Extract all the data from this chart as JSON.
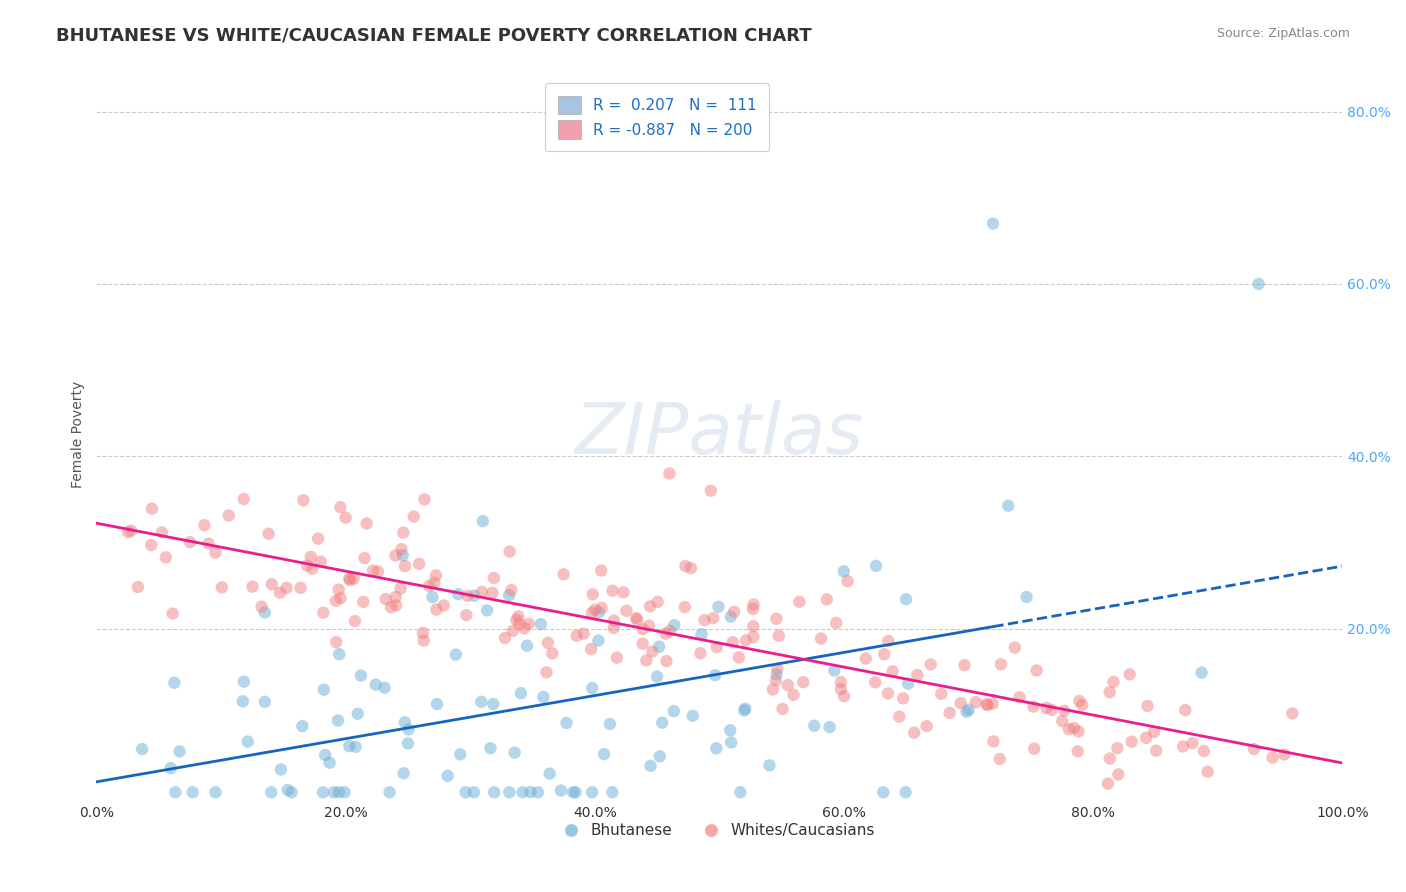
{
  "title": "BHUTANESE VS WHITE/CAUCASIAN FEMALE POVERTY CORRELATION CHART",
  "source_text": "Source: ZipAtlas.com",
  "xlabel": "",
  "ylabel": "Female Poverty",
  "xlim": [
    0.0,
    1.0
  ],
  "ylim": [
    0.0,
    0.85
  ],
  "xtick_labels": [
    "0.0%",
    "20.0%",
    "40.0%",
    "60.0%",
    "80.0%",
    "100.0%"
  ],
  "xtick_vals": [
    0.0,
    0.2,
    0.4,
    0.6,
    0.8,
    1.0
  ],
  "ytick_labels": [
    "20.0%",
    "40.0%",
    "60.0%",
    "80.0%"
  ],
  "ytick_vals": [
    0.2,
    0.4,
    0.6,
    0.8
  ],
  "legend_entries": [
    {
      "label": "R =  0.207   N =  111",
      "color": "#a8c4e0"
    },
    {
      "label": "R = -0.887   N = 200",
      "color": "#f0a0b0"
    }
  ],
  "bhutanese_color": "#6baed6",
  "caucasian_color": "#f08080",
  "bhutanese_trend_color": "#1565C0",
  "caucasian_trend_color": "#e91e8c",
  "background_color": "#ffffff",
  "watermark": "ZIPatlas",
  "title_fontsize": 13,
  "label_fontsize": 10,
  "tick_fontsize": 10,
  "R_blue": 0.207,
  "N_blue": 111,
  "R_pink": -0.887,
  "N_pink": 200,
  "bhutanese_seed": 42,
  "caucasian_seed": 7,
  "legend_label_blue": "Bhutanese",
  "legend_label_pink": "Whites/Caucasians"
}
